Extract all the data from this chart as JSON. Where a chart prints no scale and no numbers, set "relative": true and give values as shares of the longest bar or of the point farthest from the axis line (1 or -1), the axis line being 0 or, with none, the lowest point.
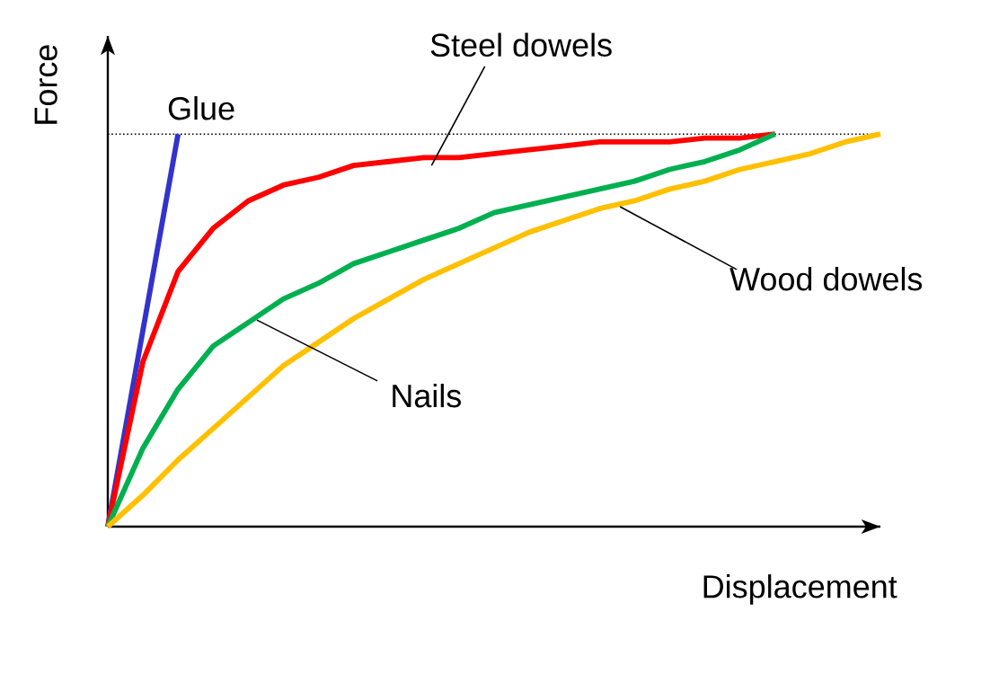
{
  "chart_data": {
    "type": "line",
    "relative": true,
    "xlabel": "Displacement",
    "ylabel": "Force",
    "line_style": "solid",
    "marker": "none",
    "categories": [
      null,
      null,
      null,
      null,
      null,
      null,
      null,
      null,
      null,
      null,
      null,
      null,
      null,
      null,
      null,
      null,
      null,
      null,
      null,
      null,
      null,
      null,
      null
    ],
    "series": [
      {
        "color": "#3333cc",
        "values": [
          0,
          0.5,
          1,
          null,
          null,
          null,
          null,
          null,
          null,
          null,
          null,
          null,
          null,
          null,
          null,
          null,
          null,
          null,
          null,
          null,
          null,
          null,
          null
        ]
      },
      {
        "color": "#ff0000",
        "values": [
          0,
          0.42,
          0.65,
          0.76,
          0.83,
          0.87,
          0.89,
          0.92,
          0.93,
          0.94,
          0.94,
          0.95,
          0.96,
          0.97,
          0.98,
          0.98,
          0.98,
          0.99,
          0.99,
          1,
          null,
          null,
          null
        ]
      },
      {
        "color": "#00b050",
        "values": [
          0,
          0.2,
          0.35,
          0.46,
          0.52,
          0.58,
          0.62,
          0.67,
          0.7,
          0.73,
          0.76,
          0.8,
          0.82,
          0.84,
          0.86,
          0.88,
          0.91,
          0.93,
          0.96,
          1,
          null,
          null,
          null
        ]
      },
      {
        "color": "#ffc000",
        "values": [
          0,
          0.08,
          0.17,
          0.25,
          0.33,
          0.41,
          0.47,
          0.53,
          0.58,
          0.63,
          0.67,
          0.71,
          0.75,
          0.78,
          0.81,
          0.83,
          0.86,
          0.88,
          0.91,
          0.93,
          0.95,
          0.98,
          1
        ]
      }
    ],
    "ref_lines": [
      {
        "axis": "y",
        "value": 1,
        "color": "#000000",
        "line_style": "dotted"
      }
    ],
    "annotations": [
      "Glue",
      "Steel dowels",
      "Nails",
      "Wood dowels"
    ]
  }
}
